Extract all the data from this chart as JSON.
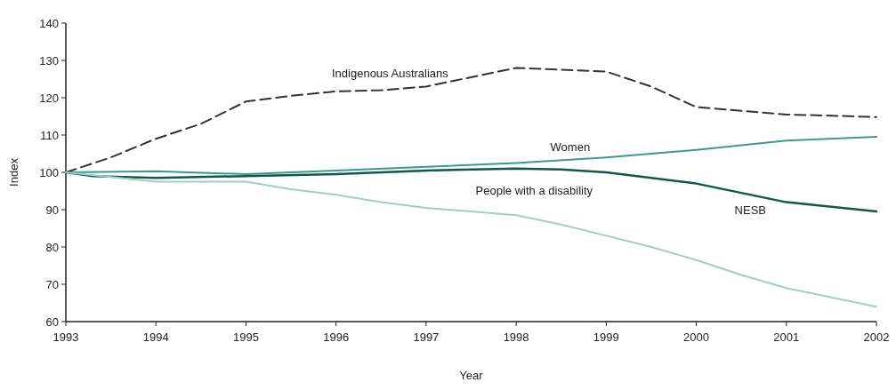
{
  "chart_data": {
    "type": "line",
    "xlabel": "Year",
    "ylabel": "Index",
    "xlim": [
      1993,
      2002
    ],
    "xticks": [
      1993,
      1994,
      1995,
      1996,
      1997,
      1998,
      1999,
      2000,
      2001,
      2002
    ],
    "ylim": [
      60,
      140
    ],
    "yticks": [
      60,
      70,
      80,
      90,
      100,
      110,
      120,
      130,
      140
    ],
    "grid": false,
    "legend": false,
    "series": [
      {
        "name": "Indigenous Australians",
        "color": "#333333",
        "line_style": "dashed",
        "x": [
          1993,
          1993.5,
          1994,
          1994.5,
          1995,
          1995.5,
          1996,
          1996.5,
          1997,
          1997.5,
          1998,
          1998.5,
          1999,
          1999.5,
          2000,
          2000.5,
          2001,
          2001.5,
          2002
        ],
        "values": [
          100,
          104,
          109,
          113,
          119,
          120.5,
          121.7,
          122,
          123,
          125.5,
          128,
          127.5,
          127,
          123,
          117.5,
          116.5,
          115.5,
          115.2,
          114.8
        ]
      },
      {
        "name": "Women",
        "color": "#3a9a8a",
        "line_style": "solid",
        "x": [
          1993,
          1994,
          1995,
          1996,
          1997,
          1998,
          1999,
          2000,
          2001,
          2002
        ],
        "values": [
          100,
          100.3,
          99.5,
          100.5,
          101.5,
          102.5,
          104,
          106,
          108.5,
          109.5
        ]
      },
      {
        "name": "NESB",
        "color": "#0e5a4a",
        "line_style": "solid",
        "x": [
          1993,
          1993.3,
          1994,
          1995,
          1996,
          1997,
          1998,
          1998.5,
          1999,
          1999.5,
          2000,
          2000.5,
          2001,
          2001.5,
          2002
        ],
        "values": [
          100,
          99,
          98.5,
          99,
          99.5,
          100.5,
          101,
          100.8,
          100,
          98.5,
          97,
          94.5,
          92,
          90.8,
          89.5
        ]
      },
      {
        "name": "People with a disability",
        "color": "#9fcfc4",
        "line_style": "solid",
        "x": [
          1993,
          1994,
          1995,
          1995.5,
          1996,
          1996.5,
          1997,
          1997.5,
          1998,
          1998.5,
          1999,
          1999.5,
          2000,
          2000.5,
          2001,
          2001.5,
          2002
        ],
        "values": [
          100,
          97.5,
          97.5,
          95.5,
          94,
          92,
          90.5,
          89.5,
          88.5,
          86,
          83,
          80,
          76.5,
          72.5,
          69,
          66.5,
          64
        ]
      }
    ]
  }
}
